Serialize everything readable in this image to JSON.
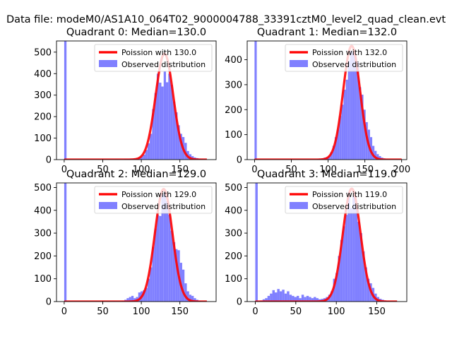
{
  "figure": {
    "suptitle": "Data file: modeM0/AS1A10_064T02_9000004788_33391cztM0_level2_quad_clean.evt"
  },
  "chart_data": [
    {
      "type": "bar",
      "title": "Quadrant 0: Median=130.0",
      "xlim": [
        -10,
        197
      ],
      "ylim": [
        0,
        552
      ],
      "xticks": [
        0,
        50,
        100,
        150
      ],
      "yticks": [
        0,
        100,
        200,
        300,
        400,
        500
      ],
      "legend": {
        "position": "top-right",
        "entries": [
          "Poission with 130.0",
          "Observed distribution"
        ]
      },
      "series": [
        {
          "name": "Observed distribution",
          "kind": "histogram",
          "color": "#8080ff",
          "bin_width": 3,
          "bars": [
            [
              0,
              552
            ],
            [
              66,
              2
            ],
            [
              78,
              3
            ],
            [
              81,
              3
            ],
            [
              84,
              4
            ],
            [
              87,
              5
            ],
            [
              90,
              5
            ],
            [
              93,
              6
            ],
            [
              96,
              10
            ],
            [
              99,
              14
            ],
            [
              102,
              23
            ],
            [
              105,
              45
            ],
            [
              108,
              76
            ],
            [
              111,
              120
            ],
            [
              114,
              235
            ],
            [
              117,
              310
            ],
            [
              120,
              400
            ],
            [
              123,
              358
            ],
            [
              126,
              340
            ],
            [
              129,
              410
            ],
            [
              132,
              360
            ],
            [
              135,
              400
            ],
            [
              138,
              348
            ],
            [
              141,
              270
            ],
            [
              144,
              220
            ],
            [
              147,
              160
            ],
            [
              150,
              120
            ],
            [
              153,
              105
            ],
            [
              156,
              78
            ],
            [
              159,
              40
            ],
            [
              162,
              25
            ],
            [
              165,
              16
            ],
            [
              168,
              10
            ],
            [
              171,
              7
            ],
            [
              174,
              5
            ],
            [
              177,
              3
            ],
            [
              180,
              2
            ]
          ]
        },
        {
          "name": "Poission with 130.0",
          "kind": "curve",
          "color": "#ff0000",
          "mean": 130,
          "amplitude": 493,
          "sigma": 11.4,
          "x_range": [
            0,
            185
          ]
        }
      ]
    },
    {
      "type": "bar",
      "title": "Quadrant 1: Median=132.0",
      "xlim": [
        -10,
        207
      ],
      "ylim": [
        0,
        475
      ],
      "xticks": [
        0,
        50,
        100,
        150,
        200
      ],
      "yticks": [
        0,
        100,
        200,
        300,
        400
      ],
      "legend": {
        "position": "top-right",
        "entries": [
          "Poission with 132.0",
          "Observed distribution"
        ]
      },
      "series": [
        {
          "name": "Observed distribution",
          "kind": "histogram",
          "color": "#8080ff",
          "bin_width": 3,
          "bars": [
            [
              0,
              475
            ],
            [
              85,
              3
            ],
            [
              88,
              4
            ],
            [
              91,
              5
            ],
            [
              94,
              8
            ],
            [
              97,
              10
            ],
            [
              100,
              15
            ],
            [
              103,
              30
            ],
            [
              106,
              55
            ],
            [
              109,
              90
            ],
            [
              112,
              120
            ],
            [
              115,
              175
            ],
            [
              118,
              220
            ],
            [
              121,
              280
            ],
            [
              124,
              320
            ],
            [
              127,
              395
            ],
            [
              130,
              435
            ],
            [
              133,
              430
            ],
            [
              136,
              410
            ],
            [
              139,
              390
            ],
            [
              142,
              290
            ],
            [
              145,
              260
            ],
            [
              148,
              200
            ],
            [
              151,
              150
            ],
            [
              154,
              120
            ],
            [
              157,
              90
            ],
            [
              160,
              55
            ],
            [
              163,
              35
            ],
            [
              166,
              22
            ],
            [
              169,
              14
            ],
            [
              172,
              8
            ],
            [
              175,
              5
            ],
            [
              178,
              3
            ],
            [
              181,
              2
            ]
          ]
        },
        {
          "name": "Poission with 132.0",
          "kind": "curve",
          "color": "#ff0000",
          "mean": 132,
          "amplitude": 455,
          "sigma": 11.5,
          "x_range": [
            0,
            200
          ]
        }
      ]
    },
    {
      "type": "bar",
      "title": "Quadrant 2: Median=129.0",
      "xlim": [
        -10,
        197
      ],
      "ylim": [
        0,
        520
      ],
      "xticks": [
        0,
        50,
        100,
        150
      ],
      "yticks": [
        0,
        100,
        200,
        300,
        400,
        500
      ],
      "legend": {
        "position": "top-right",
        "entries": [
          "Poission with 129.0",
          "Observed distribution"
        ]
      },
      "series": [
        {
          "name": "Observed distribution",
          "kind": "histogram",
          "color": "#8080ff",
          "bin_width": 3,
          "bars": [
            [
              0,
              520
            ],
            [
              63,
              2
            ],
            [
              75,
              4
            ],
            [
              78,
              8
            ],
            [
              81,
              15
            ],
            [
              84,
              20
            ],
            [
              87,
              25
            ],
            [
              90,
              15
            ],
            [
              93,
              20
            ],
            [
              96,
              40
            ],
            [
              99,
              45
            ],
            [
              102,
              50
            ],
            [
              105,
              60
            ],
            [
              108,
              100
            ],
            [
              111,
              150
            ],
            [
              114,
              240
            ],
            [
              117,
              320
            ],
            [
              120,
              380
            ],
            [
              123,
              375
            ],
            [
              126,
              470
            ],
            [
              129,
              480
            ],
            [
              132,
              440
            ],
            [
              135,
              380
            ],
            [
              138,
              310
            ],
            [
              141,
              260
            ],
            [
              144,
              230
            ],
            [
              147,
              225
            ],
            [
              150,
              170
            ],
            [
              153,
              140
            ],
            [
              156,
              80
            ],
            [
              159,
              45
            ],
            [
              162,
              30
            ],
            [
              165,
              25
            ],
            [
              168,
              15
            ],
            [
              171,
              8
            ],
            [
              174,
              4
            ]
          ]
        },
        {
          "name": "Poission with 129.0",
          "kind": "curve",
          "color": "#ff0000",
          "mean": 129,
          "amplitude": 493,
          "sigma": 11.4,
          "x_range": [
            0,
            185
          ]
        }
      ]
    },
    {
      "type": "bar",
      "title": "Quadrant 3: Median=119.0",
      "xlim": [
        -10,
        187
      ],
      "ylim": [
        0,
        520
      ],
      "xticks": [
        0,
        50,
        100,
        150
      ],
      "yticks": [
        0,
        100,
        200,
        300,
        400,
        500
      ],
      "legend": {
        "position": "top-right",
        "entries": [
          "Poission with 119.0",
          "Observed distribution"
        ]
      },
      "series": [
        {
          "name": "Observed distribution",
          "kind": "histogram",
          "color": "#8080ff",
          "bin_width": 3,
          "bars": [
            [
              0,
              520
            ],
            [
              6,
              5
            ],
            [
              9,
              10
            ],
            [
              12,
              15
            ],
            [
              15,
              25
            ],
            [
              18,
              35
            ],
            [
              21,
              50
            ],
            [
              24,
              40
            ],
            [
              27,
              55
            ],
            [
              30,
              45
            ],
            [
              33,
              52
            ],
            [
              36,
              35
            ],
            [
              39,
              45
            ],
            [
              42,
              30
            ],
            [
              45,
              25
            ],
            [
              48,
              20
            ],
            [
              51,
              25
            ],
            [
              54,
              15
            ],
            [
              57,
              30
            ],
            [
              60,
              20
            ],
            [
              63,
              25
            ],
            [
              66,
              20
            ],
            [
              69,
              15
            ],
            [
              72,
              20
            ],
            [
              75,
              15
            ],
            [
              78,
              10
            ],
            [
              81,
              12
            ],
            [
              84,
              15
            ],
            [
              87,
              20
            ],
            [
              90,
              30
            ],
            [
              93,
              45
            ],
            [
              96,
              100
            ],
            [
              99,
              125
            ],
            [
              102,
              200
            ],
            [
              105,
              270
            ],
            [
              108,
              330
            ],
            [
              111,
              380
            ],
            [
              114,
              480
            ],
            [
              117,
              410
            ],
            [
              120,
              460
            ],
            [
              123,
              420
            ],
            [
              126,
              350
            ],
            [
              129,
              300
            ],
            [
              132,
              220
            ],
            [
              135,
              150
            ],
            [
              138,
              100
            ],
            [
              141,
              80
            ],
            [
              144,
              60
            ],
            [
              147,
              35
            ],
            [
              150,
              20
            ],
            [
              153,
              12
            ],
            [
              156,
              8
            ],
            [
              159,
              5
            ],
            [
              162,
              3
            ]
          ]
        },
        {
          "name": "Poission with 119.0",
          "kind": "curve",
          "color": "#ff0000",
          "mean": 119,
          "amplitude": 495,
          "sigma": 10.9,
          "x_range": [
            0,
            175
          ]
        }
      ]
    }
  ]
}
